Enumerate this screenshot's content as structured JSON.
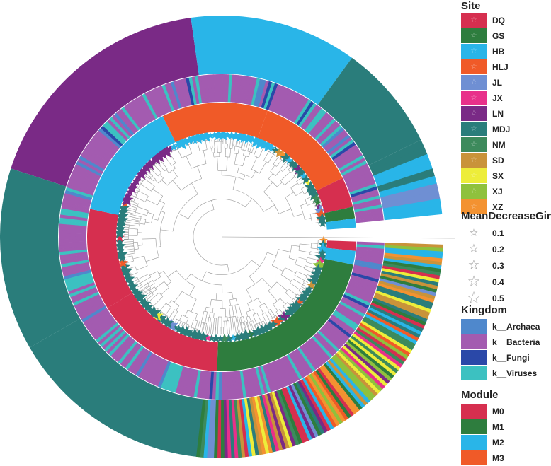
{
  "legend": {
    "site": {
      "title": "Site",
      "items": [
        {
          "label": "DQ",
          "color": "#d62f4f"
        },
        {
          "label": "GS",
          "color": "#2e7d3e"
        },
        {
          "label": "HB",
          "color": "#29b5e8"
        },
        {
          "label": "HLJ",
          "color": "#f05a28"
        },
        {
          "label": "JL",
          "color": "#6f8fd3"
        },
        {
          "label": "JX",
          "color": "#e8308a"
        },
        {
          "label": "LN",
          "color": "#7a2a86"
        },
        {
          "label": "MDJ",
          "color": "#2a7d7b"
        },
        {
          "label": "NM",
          "color": "#3d8a5c"
        },
        {
          "label": "SD",
          "color": "#c9933a"
        },
        {
          "label": "SX",
          "color": "#eded3a"
        },
        {
          "label": "XJ",
          "color": "#8fc13d"
        },
        {
          "label": "XZ",
          "color": "#f39231"
        }
      ]
    },
    "gini": {
      "title": "MeanDecreaseGini",
      "items": [
        {
          "label": "0.1",
          "value": 0.1
        },
        {
          "label": "0.2",
          "value": 0.2
        },
        {
          "label": "0.3",
          "value": 0.3
        },
        {
          "label": "0.4",
          "value": 0.4
        },
        {
          "label": "0.5",
          "value": 0.5
        }
      ]
    },
    "kingdom": {
      "title": "Kingdom",
      "items": [
        {
          "label": "k__Archaea",
          "color": "#4f88cc"
        },
        {
          "label": "k__Bacteria",
          "color": "#a35bb0"
        },
        {
          "label": "k__Fungi",
          "color": "#2a48a8"
        },
        {
          "label": "k__Viruses",
          "color": "#3cc1c1"
        }
      ]
    },
    "module": {
      "title": "Module",
      "items": [
        {
          "label": "M0",
          "color": "#d62f4f"
        },
        {
          "label": "M1",
          "color": "#2e7d3e"
        },
        {
          "label": "M2",
          "color": "#29b5e8"
        },
        {
          "label": "M3",
          "color": "#f05a28"
        }
      ]
    }
  }
}
